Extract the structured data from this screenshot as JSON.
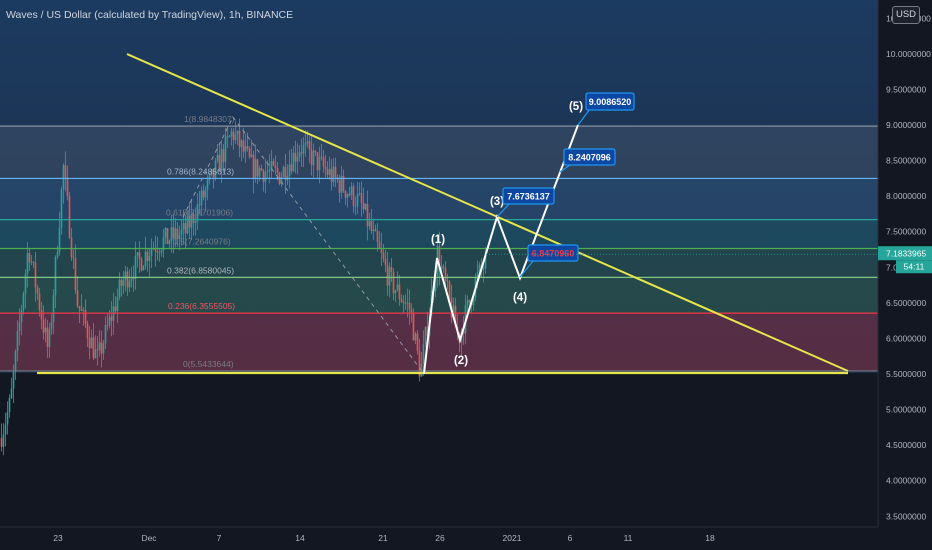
{
  "header": {
    "title": "Waves / US Dollar (calculated by TradingView), 1h, BINANCE",
    "currency_label": "USD"
  },
  "price_axis": {
    "ticks": [
      "10.5000000",
      "10.0000000",
      "9.5000000",
      "9.0000000",
      "8.5000000",
      "8.0000000",
      "7.5000000",
      "7.0000000",
      "6.5000000",
      "6.0000000",
      "5.5000000",
      "5.0000000",
      "4.5000000",
      "4.0000000",
      "3.5000000"
    ],
    "current_price": "7.1833965",
    "countdown": "54:11"
  },
  "time_axis": {
    "labels": [
      "23",
      "Dec",
      "7",
      "14",
      "21",
      "26",
      "2021",
      "6",
      "11",
      "18"
    ]
  },
  "fib_levels": [
    {
      "label": "1(8.9848307)",
      "value": 8.9848307,
      "line_color": "#9598a1",
      "text_color": "#787b86",
      "band_fill": "rgba(120,123,134,0.22)"
    },
    {
      "label": "0.786(8.2485613)",
      "value": 8.2485613,
      "line_color": "#64b5f6",
      "text_color": "#9fb4cc",
      "band_fill": "rgba(100,181,246,0.14)"
    },
    {
      "label": "0.618(7.6701906)",
      "value": 7.6701906,
      "line_color": "#26a69a",
      "text_color": "#787b86",
      "band_fill": "rgba(38,166,154,0.20)"
    },
    {
      "label": "0.5(7.2640976)",
      "value": 7.2640976,
      "line_color": "#4caf50",
      "text_color": "#787b86",
      "band_fill": "rgba(76,175,80,0.16)"
    },
    {
      "label": "0.382(6.8580045)",
      "value": 6.8580045,
      "line_color": "#81c784",
      "text_color": "#b2b5be",
      "band_fill": "rgba(76,175,80,0.22)"
    },
    {
      "label": "0.236(6.3555505)",
      "value": 6.3555505,
      "line_color": "#f23645",
      "text_color": "#f7525f",
      "band_fill": "rgba(242,54,69,0.28)"
    },
    {
      "label": "0(5.5433644)",
      "value": 5.5433644,
      "line_color": "#787b86",
      "text_color": "#787b86",
      "band_fill": "rgba(0,0,0,0)"
    }
  ],
  "wave_labels": [
    "(1)",
    "(2)",
    "(3)",
    "(4)",
    "(5)"
  ],
  "price_callouts": [
    {
      "text": "9.0086520",
      "color": "#ffffff"
    },
    {
      "text": "8.2407096",
      "color": "#ffffff"
    },
    {
      "text": "7.6736137",
      "color": "#ffffff"
    },
    {
      "text": "6.8470960",
      "color": "#f23645"
    }
  ],
  "colors": {
    "background": "#131722",
    "upper_zone": "#1c3a5e",
    "trendline": "#e6e64a",
    "wave_path": "#ffffff",
    "candle_up": "#26a69a",
    "candle_down": "#ef5350",
    "callout_border": "#2196f3",
    "callout_fill": "#0d47a1"
  }
}
